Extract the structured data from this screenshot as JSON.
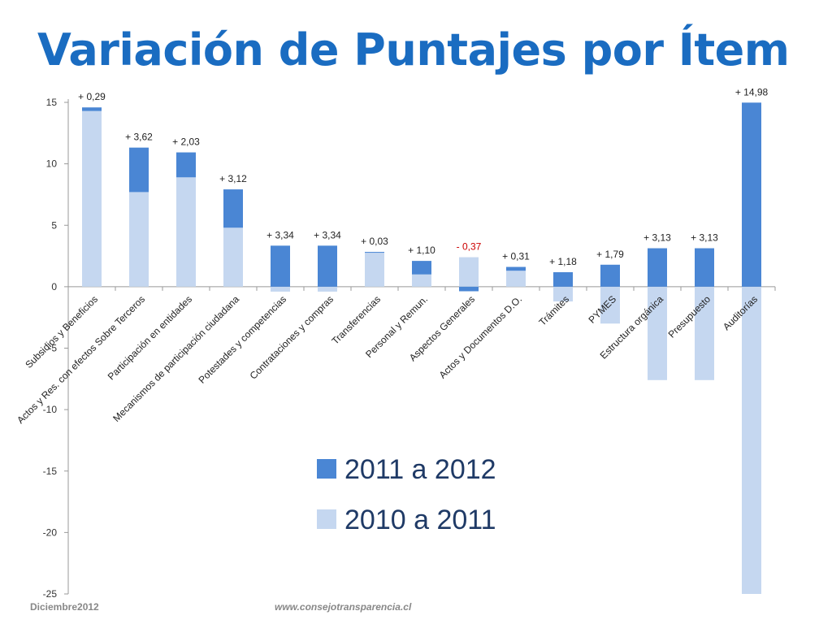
{
  "title": "Variación de Puntajes por Ítem",
  "footer": {
    "left": "Diciembre2012",
    "right": "www.consejotransparencia.cl"
  },
  "colors": {
    "series_2011_2012": "#4a86d4",
    "series_2010_2011": "#c5d7f0",
    "label_default": "#222222",
    "label_negative": "#cc0000",
    "title": "#1a6cc1"
  },
  "chart_data": {
    "type": "bar",
    "stacked": true,
    "categories": [
      "Subsidios y Beneficios",
      "Actos y Res. con efectos Sobre Terceros",
      "Participación en entidades",
      "Mecanismos de participación ciudadana",
      "Potestades y competencias",
      "Contrataciones y compras",
      "Transferencias",
      "Personal y Remun.",
      "Aspectos Generales",
      "Actos y Documentos D.O.",
      "Trámites",
      "PYMES",
      "Estructura orgánica",
      "Presupuesto",
      "Auditorías"
    ],
    "series": [
      {
        "name": "2011 a 2012",
        "values": [
          0.29,
          3.62,
          2.03,
          3.12,
          3.34,
          3.34,
          0.03,
          1.1,
          -0.37,
          0.31,
          1.18,
          1.79,
          3.13,
          3.13,
          14.98
        ]
      },
      {
        "name": "2010 a 2011",
        "values": [
          14.3,
          7.7,
          8.9,
          4.8,
          -0.4,
          -0.4,
          2.8,
          1.0,
          2.4,
          1.3,
          -1.2,
          -3.0,
          -7.6,
          -7.6,
          -25.0
        ]
      }
    ],
    "data_labels": [
      "+ 0,29",
      "+ 3,62",
      "+ 2,03",
      "+ 3,12",
      "+ 3,34",
      "+ 3,34",
      "+ 0,03",
      "+ 1,10",
      "- 0,37",
      "+ 0,31",
      "+ 1,18",
      "+ 1,79",
      "+ 3,13",
      "+ 3,13",
      "+ 14,98"
    ],
    "y_ticks": [
      "15",
      "10",
      "5",
      "0",
      "-5",
      "-10",
      "-15",
      "-20",
      "-25"
    ],
    "ylim": [
      -25,
      15
    ],
    "grid": false,
    "legend_position": "center-bottom"
  }
}
